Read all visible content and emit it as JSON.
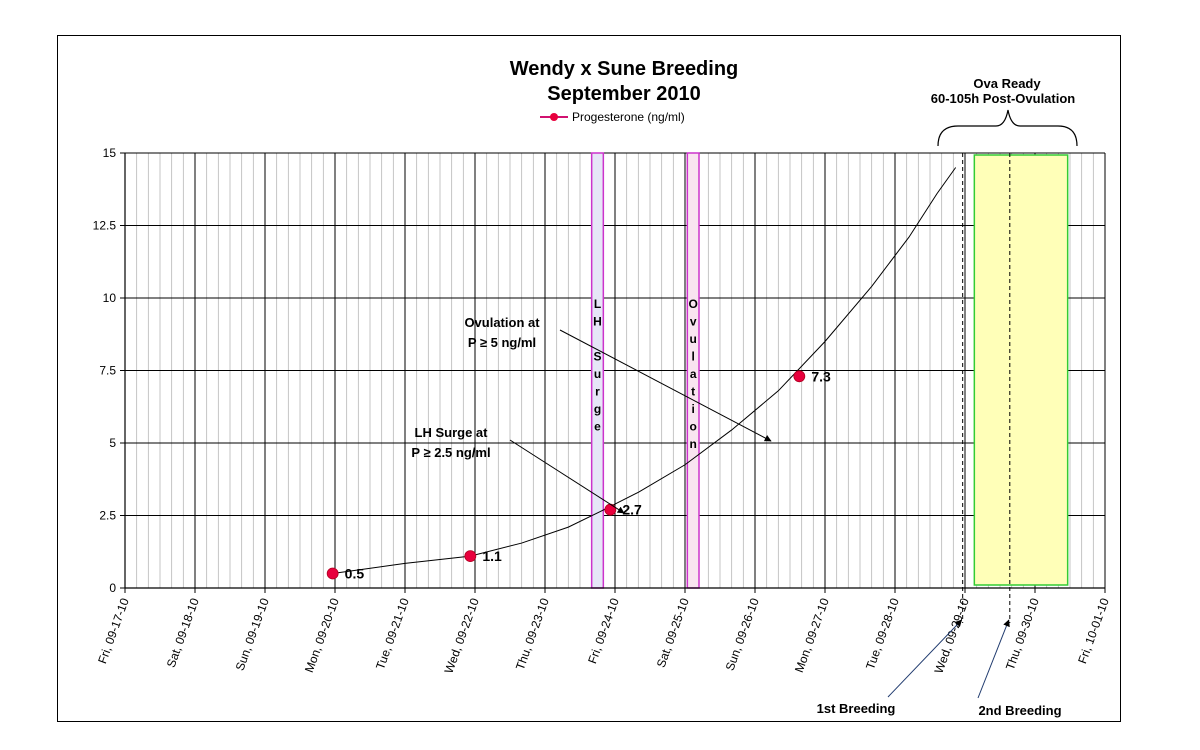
{
  "chart_data": {
    "type": "line",
    "title": "Wendy x Sune Breeding",
    "subtitle": "September 2010",
    "series": [
      {
        "name": "Progesterone (ng/ml)",
        "color": "#e8003d",
        "line_color": "#d11170",
        "points": [
          {
            "x": 4.45,
            "y": 0.5,
            "label": "0.5"
          },
          {
            "x": 7.4,
            "y": 1.1,
            "label": "1.1"
          },
          {
            "x": 10.4,
            "y": 2.7,
            "label": "2.7"
          },
          {
            "x": 14.45,
            "y": 7.3,
            "label": "7.3"
          }
        ]
      }
    ],
    "trend_curve": [
      [
        4.45,
        0.5
      ],
      [
        6,
        0.85
      ],
      [
        7.4,
        1.1
      ],
      [
        8.5,
        1.55
      ],
      [
        9.5,
        2.1
      ],
      [
        10.2,
        2.65
      ],
      [
        11,
        3.3
      ],
      [
        12,
        4.25
      ],
      [
        13,
        5.45
      ],
      [
        14,
        6.8
      ],
      [
        15,
        8.5
      ],
      [
        16,
        10.4
      ],
      [
        16.8,
        12.1
      ],
      [
        17.4,
        13.6
      ],
      [
        17.8,
        14.5
      ]
    ],
    "xlim": [
      0,
      21
    ],
    "ylim": [
      0,
      15
    ],
    "y_ticks": [
      {
        "v": 0,
        "label": "0"
      },
      {
        "v": 2.5,
        "label": "2.5"
      },
      {
        "v": 5,
        "label": "5"
      },
      {
        "v": 7.5,
        "label": "7.5"
      },
      {
        "v": 10,
        "label": "10"
      },
      {
        "v": 12.5,
        "label": "12.5"
      },
      {
        "v": 15,
        "label": "15"
      }
    ],
    "x_ticks": [
      "Fri, 09-17-10",
      "Sat, 09-18-10",
      "Sun, 09-19-10",
      "Mon, 09-20-10",
      "Tue, 09-21-10",
      "Wed, 09-22-10",
      "Thu, 09-23-10",
      "Fri, 09-24-10",
      "Sat, 09-25-10",
      "Sun, 09-26-10",
      "Mon, 09-27-10",
      "Tue, 09-28-10",
      "Wed, 09-29-10",
      "Thu, 09-30-10",
      "Fri, 10-01-10"
    ],
    "x_tick_step": 1.5,
    "minor_grid_step": 0.25,
    "grid": true,
    "legend": "top-center",
    "bands": [
      {
        "name": "lh-surge",
        "x0": 10,
        "x1": 10.25,
        "fill": "#e6e6f7",
        "stroke": "#cc33cc",
        "letters": [
          "L",
          "H",
          "",
          "S",
          "u",
          "r",
          "g",
          "e"
        ]
      },
      {
        "name": "ovulation",
        "x0": 12.05,
        "x1": 12.3,
        "fill": "#f9e4f0",
        "stroke": "#cc33cc",
        "letters": [
          "O",
          "v",
          "u",
          "l",
          "a",
          "t",
          "i",
          "o",
          "n"
        ]
      }
    ],
    "ova_box": {
      "x0": 18.2,
      "x1": 20.2,
      "fill": "#ffffb8",
      "stroke": "#33cc33"
    },
    "breeding_lines": [
      {
        "x": 17.95,
        "label": "1st Breeding"
      },
      {
        "x": 18.96,
        "label": "2nd Breeding"
      }
    ],
    "annotations": {
      "ovulation": [
        "Ovulation at",
        "P ≥ 5 ng/ml"
      ],
      "lh_surge": [
        "LH Surge at",
        "P ≥ 2.5 ng/ml"
      ],
      "ova_ready": [
        "Ova Ready",
        "60-105h  Post-Ovulation"
      ]
    }
  }
}
